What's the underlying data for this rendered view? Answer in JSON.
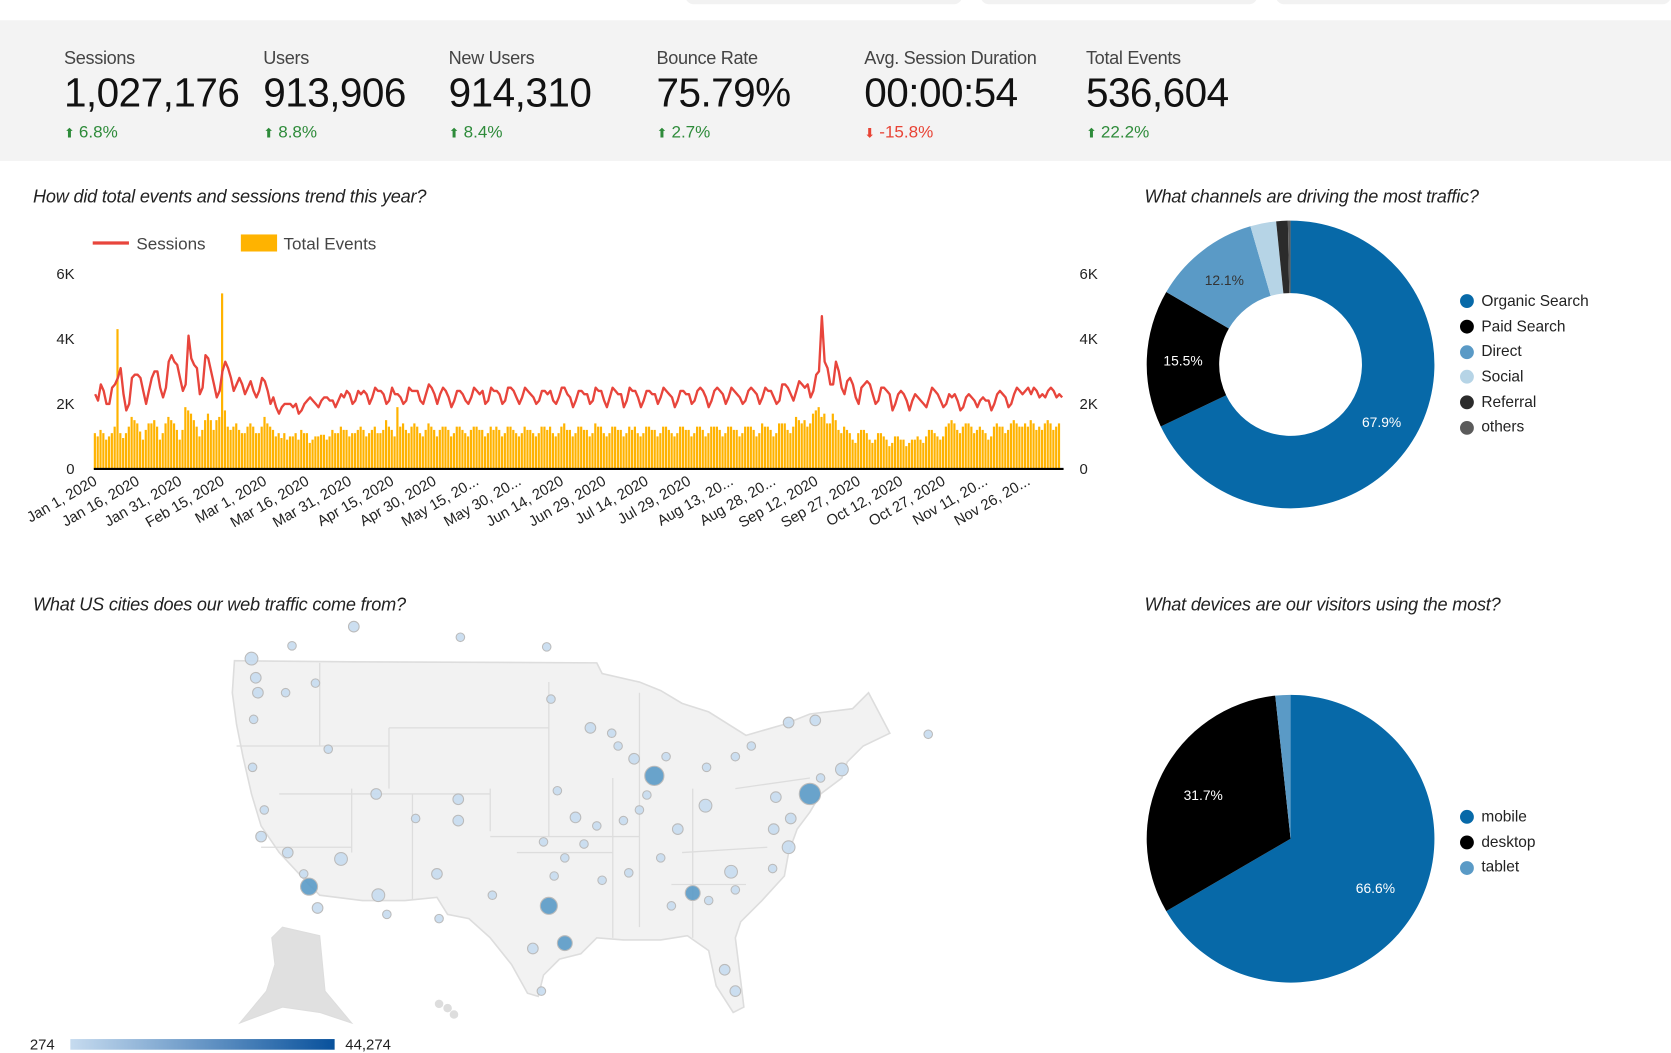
{
  "kpis": [
    {
      "label": "Sessions",
      "value": "1,027,176",
      "change": "6.8%",
      "direction": "up"
    },
    {
      "label": "Users",
      "value": "913,906",
      "change": "8.8%",
      "direction": "up"
    },
    {
      "label": "New Users",
      "value": "914,310",
      "change": "8.4%",
      "direction": "up"
    },
    {
      "label": "Bounce Rate",
      "value": "75.79%",
      "change": "2.7%",
      "direction": "up"
    },
    {
      "label": "Avg. Session Duration",
      "value": "00:00:54",
      "change": "-15.8%",
      "direction": "down"
    },
    {
      "label": "Total Events",
      "value": "536,604",
      "change": "22.2%",
      "direction": "up"
    }
  ],
  "colors": {
    "up": "#2e8b3a",
    "down": "#e84335",
    "sessions": "#e8453c",
    "events": "#ffb300",
    "map_low": "#c6dbef",
    "map_high": "#08519c"
  },
  "trend": {
    "title": "How did total events and sessions trend this year?"
  },
  "channels": {
    "title": "What channels are driving the most traffic?"
  },
  "cities": {
    "title": "What US cities does our web traffic come from?",
    "scale_min": "274",
    "scale_max": "44,274"
  },
  "devices": {
    "title": "What devices are our visitors using the most?"
  },
  "chart_data": [
    {
      "type": "bar+line",
      "legend": [
        "Sessions",
        "Total Events"
      ],
      "legend_position": "top-left",
      "y_ticks": [
        "0",
        "2K",
        "4K",
        "6K"
      ],
      "ylim": [
        0,
        6000
      ],
      "y2lim": [
        0,
        6000
      ],
      "x_range": [
        "Jan 1, 2020",
        "Dec 8, 2020"
      ],
      "x_tick_labels": [
        "Jan 1, 2020",
        "Jan 16, 2020",
        "Jan 31, 2020",
        "Feb 15, 2020",
        "Mar 1, 2020",
        "Mar 16, 2020",
        "Mar 31, 2020",
        "Apr 15, 2020",
        "Apr 30, 2020",
        "May 15, 20...",
        "May 30, 20...",
        "Jun 14, 2020",
        "Jun 29, 2020",
        "Jul 14, 2020",
        "Jul 29, 2020",
        "Aug 13, 20...",
        "Aug 28, 20...",
        "Sep 12, 2020",
        "Sep 27, 2020",
        "Oct 12, 2020",
        "Oct 27, 2020",
        "Nov 11, 20...",
        "Nov 26, 20..."
      ],
      "series": [
        {
          "name": "Sessions",
          "type": "line",
          "color": "#e8453c",
          "values": [
            2300,
            2100,
            2600,
            2400,
            2000,
            2000,
            2500,
            2600,
            2800,
            3100,
            2300,
            1800,
            2000,
            2800,
            2900,
            2900,
            2800,
            2400,
            2000,
            2400,
            2800,
            3000,
            3000,
            2500,
            2200,
            2500,
            3300,
            3500,
            3300,
            3200,
            2800,
            2400,
            2600,
            4100,
            3400,
            3200,
            3100,
            2300,
            2500,
            3500,
            3400,
            3000,
            2600,
            2200,
            2400,
            3000,
            3300,
            3100,
            2800,
            2400,
            2600,
            2800,
            2600,
            2300,
            2500,
            2700,
            2400,
            2200,
            2400,
            2800,
            2700,
            2400,
            2000,
            2200,
            1900,
            1700,
            1900,
            2000,
            2000,
            2000,
            1900,
            2000,
            1700,
            1800,
            2000,
            2100,
            2200,
            2100,
            2000,
            1900,
            2100,
            2200,
            2200,
            2100,
            2100,
            1900,
            2100,
            2300,
            2200,
            2400,
            2300,
            2000,
            2100,
            2400,
            2300,
            2400,
            2300,
            2000,
            2200,
            2500,
            2400,
            2400,
            2300,
            2000,
            2100,
            2500,
            2300,
            2300,
            2200,
            2000,
            2100,
            2500,
            2400,
            2400,
            2400,
            2100,
            2000,
            2300,
            2600,
            2500,
            2300,
            2000,
            2300,
            2500,
            2400,
            2200,
            1900,
            2100,
            2400,
            2400,
            2300,
            2100,
            2000,
            2200,
            2500,
            2400,
            2300,
            2400,
            2000,
            2100,
            2500,
            2400,
            2400,
            2300,
            2000,
            2100,
            2500,
            2500,
            2400,
            2200,
            2000,
            2200,
            2500,
            2400,
            2300,
            2200,
            2000,
            2100,
            2400,
            2400,
            2300,
            2400,
            2100,
            2000,
            2200,
            2500,
            2500,
            2300,
            2200,
            1900,
            2100,
            2400,
            2400,
            2300,
            2300,
            2000,
            2100,
            2500,
            2400,
            2400,
            2100,
            1900,
            2200,
            2500,
            2400,
            2300,
            2300,
            1900,
            2100,
            2500,
            2400,
            2400,
            2200,
            1900,
            2100,
            2400,
            2400,
            2300,
            2300,
            2000,
            2200,
            2500,
            2400,
            2300,
            2200,
            1900,
            2100,
            2400,
            2400,
            2300,
            2300,
            2000,
            2100,
            2400,
            2500,
            2400,
            2200,
            1900,
            2100,
            2400,
            2500,
            2400,
            2300,
            2000,
            2200,
            2500,
            2400,
            2300,
            2200,
            2000,
            2100,
            2400,
            2500,
            2400,
            2300,
            2000,
            2200,
            2500,
            2400,
            2400,
            2200,
            2000,
            2100,
            2600,
            2600,
            2500,
            2300,
            2100,
            2400,
            2700,
            2600,
            2500,
            2600,
            2200,
            2400,
            2900,
            3000,
            4700,
            3300,
            3100,
            2600,
            2600,
            3300,
            3000,
            2500,
            2300,
            2700,
            2800,
            2600,
            2200,
            2000,
            2500,
            2600,
            2700,
            2600,
            2300,
            2000,
            2100,
            2500,
            2500,
            2400,
            2300,
            1800,
            2000,
            2300,
            2400,
            2300,
            2100,
            1800,
            2100,
            2300,
            2200,
            2100,
            2000,
            1900,
            2200,
            2500,
            2400,
            2300,
            2100,
            1900,
            2000,
            2300,
            2200,
            2300,
            2100,
            1800,
            1900,
            2200,
            2300,
            2200,
            2100,
            1900,
            2100,
            2200,
            2100,
            2100,
            1800,
            2000,
            2300,
            2400,
            2300,
            2200,
            1900,
            2000,
            2300,
            2500,
            2400,
            2300,
            2400,
            2500,
            2300,
            2500,
            2400,
            2200,
            2300,
            2200,
            2400,
            2500,
            2400,
            2200,
            2300,
            2200
          ]
        },
        {
          "name": "Total Events",
          "type": "bar",
          "color": "#ffb300",
          "values": [
            1100,
            1000,
            1200,
            1100,
            900,
            1000,
            1100,
            1300,
            4300,
            1100,
            950,
            1100,
            1300,
            1600,
            1500,
            1400,
            1150,
            900,
            1200,
            1400,
            1400,
            1500,
            1300,
            900,
            1100,
            1400,
            1600,
            1500,
            1400,
            1200,
            900,
            1200,
            1900,
            1800,
            1700,
            1500,
            1300,
            1000,
            1200,
            1500,
            1700,
            1500,
            1200,
            1500,
            1600,
            5400,
            1800,
            1300,
            1200,
            1300,
            1400,
            1200,
            1100,
            1100,
            1300,
            1400,
            1300,
            1100,
            1100,
            1300,
            1600,
            1400,
            1300,
            1200,
            1000,
            1100,
            950,
            1100,
            900,
            1000,
            1000,
            1100,
            900,
            1200,
            1100,
            1100,
            800,
            900,
            1000,
            1000,
            1050,
            1050,
            900,
            1000,
            1200,
            1100,
            1100,
            1300,
            1200,
            1200,
            1000,
            1100,
            1100,
            1200,
            1300,
            1200,
            1000,
            1100,
            1200,
            1300,
            1100,
            1100,
            1200,
            1500,
            1300,
            1200,
            1000,
            1900,
            1300,
            1400,
            1200,
            1100,
            1300,
            1400,
            1300,
            1100,
            1000,
            1200,
            1400,
            1300,
            1200,
            1000,
            1200,
            1300,
            1300,
            1200,
            1000,
            1100,
            1300,
            1300,
            1200,
            1100,
            1000,
            1200,
            1300,
            1300,
            1200,
            1200,
            1000,
            1100,
            1300,
            1200,
            1300,
            1200,
            1000,
            1100,
            1300,
            1300,
            1200,
            1100,
            1000,
            1100,
            1300,
            1200,
            1200,
            1100,
            1000,
            1100,
            1300,
            1300,
            1200,
            1300,
            1100,
            1000,
            1100,
            1300,
            1400,
            1200,
            1200,
            1000,
            1100,
            1300,
            1300,
            1200,
            1200,
            1000,
            1100,
            1400,
            1300,
            1300,
            1100,
            1000,
            1100,
            1300,
            1300,
            1200,
            1200,
            1000,
            1100,
            1300,
            1200,
            1300,
            1100,
            1000,
            1100,
            1300,
            1300,
            1200,
            1200,
            1000,
            1100,
            1300,
            1300,
            1200,
            1100,
            1000,
            1100,
            1300,
            1300,
            1200,
            1200,
            1000,
            1100,
            1300,
            1300,
            1200,
            1000,
            1100,
            1300,
            1300,
            1300,
            1200,
            1000,
            1100,
            1300,
            1300,
            1200,
            1200,
            1000,
            1100,
            1300,
            1300,
            1300,
            1200,
            1000,
            1100,
            1400,
            1300,
            1300,
            1200,
            1000,
            1100,
            1400,
            1400,
            1400,
            1200,
            1100,
            1300,
            1600,
            1500,
            1400,
            1500,
            1300,
            1400,
            1700,
            1800,
            1900,
            1600,
            1700,
            1400,
            1400,
            1700,
            1500,
            1200,
            1100,
            1300,
            1200,
            1100,
            900,
            800,
            1100,
            1200,
            1200,
            1100,
            900,
            800,
            900,
            1100,
            1100,
            1000,
            900,
            700,
            800,
            1000,
            1000,
            900,
            900,
            700,
            800,
            900,
            900,
            1000,
            900,
            800,
            1000,
            1200,
            1200,
            1100,
            1000,
            900,
            1000,
            1300,
            1400,
            1500,
            1400,
            1200,
            1100,
            1300,
            1400,
            1400,
            1300,
            1100,
            1200,
            1300,
            1200,
            1100,
            900,
            1000,
            1300,
            1400,
            1300,
            1300,
            1100,
            1200,
            1400,
            1500,
            1400,
            1300,
            1300,
            1400,
            1300,
            1500,
            1400,
            1200,
            1300,
            1200,
            1400,
            1500,
            1400,
            1200,
            1300,
            1400
          ]
        }
      ]
    },
    {
      "type": "pie",
      "donut": true,
      "labels": [
        "Organic Search",
        "Paid Search",
        "Direct",
        "Social",
        "Referral",
        "others"
      ],
      "values": [
        67.9,
        15.5,
        12.1,
        2.9,
        1.3,
        0.3
      ],
      "value_labels": [
        "67.9%",
        "15.5%",
        "12.1%",
        "",
        "",
        ""
      ],
      "colors": [
        "#0769a8",
        "#000000",
        "#5a9ac6",
        "#b6d4e6",
        "#2b2b2b",
        "#5b5b5b"
      ],
      "legend_position": "right"
    },
    {
      "type": "pie",
      "donut": false,
      "labels": [
        "mobile",
        "desktop",
        "tablet"
      ],
      "values": [
        66.6,
        31.7,
        1.7
      ],
      "value_labels": [
        "66.6%",
        "31.7%",
        ""
      ],
      "colors": [
        "#0769a8",
        "#000000",
        "#5a9ac6"
      ],
      "legend_position": "right"
    }
  ]
}
